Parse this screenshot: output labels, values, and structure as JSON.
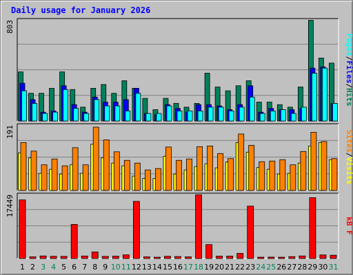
{
  "title": "Daily usage for January 2026",
  "colors": {
    "background": "#c0c0c0",
    "plot_area": "#c0c0c0",
    "grid": "#808080",
    "hits": "#00805c",
    "files": "#0000ff",
    "pages": "#00ffff",
    "visits": "#ffff00",
    "sites": "#ff8000",
    "kbytes": "#ff0000",
    "weekday_label": "#000000",
    "weekend_label": "#00805c"
  },
  "chart_data": [
    {
      "type": "bar",
      "panel": "hits",
      "max_label": "803",
      "ylim": [
        0,
        803
      ],
      "right_label": [
        {
          "text": "Pages",
          "color": "#00ffff"
        },
        {
          "text": "/",
          "color": "#000000"
        },
        {
          "text": "Files",
          "color": "#0000ff"
        },
        {
          "text": "/",
          "color": "#000000"
        },
        {
          "text": "Hits",
          "color": "#00805c"
        }
      ],
      "categories": [
        "1",
        "2",
        "3",
        "4",
        "5",
        "6",
        "7",
        "8",
        "9",
        "10",
        "11",
        "12",
        "13",
        "14",
        "15",
        "16",
        "17",
        "18",
        "19",
        "20",
        "21",
        "22",
        "23",
        "24",
        "25",
        "26",
        "27",
        "28",
        "29",
        "30",
        "31"
      ],
      "series": [
        {
          "name": "Hits",
          "values": [
            390,
            220,
            220,
            260,
            390,
            250,
            110,
            260,
            290,
            220,
            320,
            260,
            180,
            90,
            180,
            140,
            110,
            140,
            380,
            270,
            240,
            280,
            320,
            150,
            150,
            130,
            110,
            270,
            800,
            500,
            460
          ]
        },
        {
          "name": "Files",
          "values": [
            300,
            170,
            70,
            80,
            280,
            130,
            70,
            190,
            150,
            150,
            170,
            260,
            60,
            50,
            130,
            100,
            70,
            130,
            130,
            120,
            90,
            130,
            280,
            70,
            100,
            90,
            90,
            100,
            420,
            430,
            140
          ]
        },
        {
          "name": "Pages",
          "values": [
            240,
            140,
            60,
            70,
            250,
            100,
            60,
            170,
            120,
            120,
            80,
            220,
            60,
            60,
            120,
            80,
            80,
            80,
            110,
            110,
            80,
            110,
            190,
            60,
            80,
            90,
            60,
            110,
            380,
            420,
            140
          ]
        }
      ]
    },
    {
      "type": "bar",
      "panel": "visits",
      "max_label": "191",
      "ylim": [
        0,
        191
      ],
      "right_label": [
        {
          "text": "Sites",
          "color": "#ff8000"
        },
        {
          "text": "/",
          "color": "#000000"
        },
        {
          "text": "Visits",
          "color": "#ffff00"
        }
      ],
      "categories": [
        "1",
        "2",
        "3",
        "4",
        "5",
        "6",
        "7",
        "8",
        "9",
        "10",
        "11",
        "12",
        "13",
        "14",
        "15",
        "16",
        "17",
        "18",
        "19",
        "20",
        "21",
        "22",
        "23",
        "24",
        "25",
        "26",
        "27",
        "28",
        "29",
        "30",
        "31"
      ],
      "series": [
        {
          "name": "Visits",
          "values": [
            110,
            95,
            50,
            62,
            48,
            75,
            50,
            135,
            95,
            80,
            72,
            42,
            35,
            35,
            100,
            48,
            60,
            70,
            78,
            66,
            83,
            140,
            112,
            67,
            62,
            48,
            50,
            80,
            130,
            140,
            90
          ]
        },
        {
          "name": "Sites",
          "values": [
            140,
            115,
            75,
            92,
            72,
            125,
            75,
            185,
            148,
            113,
            88,
            80,
            60,
            64,
            127,
            88,
            92,
            128,
            130,
            108,
            93,
            165,
            132,
            84,
            86,
            90,
            75,
            114,
            170,
            143,
            93
          ]
        }
      ]
    },
    {
      "type": "bar",
      "panel": "kbytes",
      "max_label": "17449",
      "ylim": [
        0,
        17449
      ],
      "right_label": [
        {
          "text": "kB F",
          "color": "#ff0000"
        }
      ],
      "categories": [
        "1",
        "2",
        "3",
        "4",
        "5",
        "6",
        "7",
        "8",
        "9",
        "10",
        "11",
        "12",
        "13",
        "14",
        "15",
        "16",
        "17",
        "18",
        "19",
        "20",
        "21",
        "22",
        "23",
        "24",
        "25",
        "26",
        "27",
        "28",
        "29",
        "30",
        "31"
      ],
      "series": [
        {
          "name": "kB F",
          "values": [
            16000,
            450,
            700,
            600,
            580,
            9300,
            680,
            1800,
            580,
            630,
            1000,
            15600,
            450,
            360,
            610,
            540,
            450,
            17400,
            3800,
            650,
            650,
            1400,
            14300,
            360,
            380,
            360,
            520,
            700,
            16600,
            980,
            900
          ]
        }
      ]
    }
  ],
  "day_labels": [
    "1",
    "2",
    "3",
    "4",
    "5",
    "6",
    "7",
    "8",
    "9",
    "10",
    "11",
    "12",
    "13",
    "14",
    "15",
    "16",
    "17",
    "18",
    "19",
    "20",
    "21",
    "22",
    "23",
    "24",
    "25",
    "26",
    "27",
    "28",
    "29",
    "30",
    "31"
  ],
  "weekend_days": [
    3,
    4,
    10,
    11,
    17,
    18,
    24,
    25,
    31
  ]
}
